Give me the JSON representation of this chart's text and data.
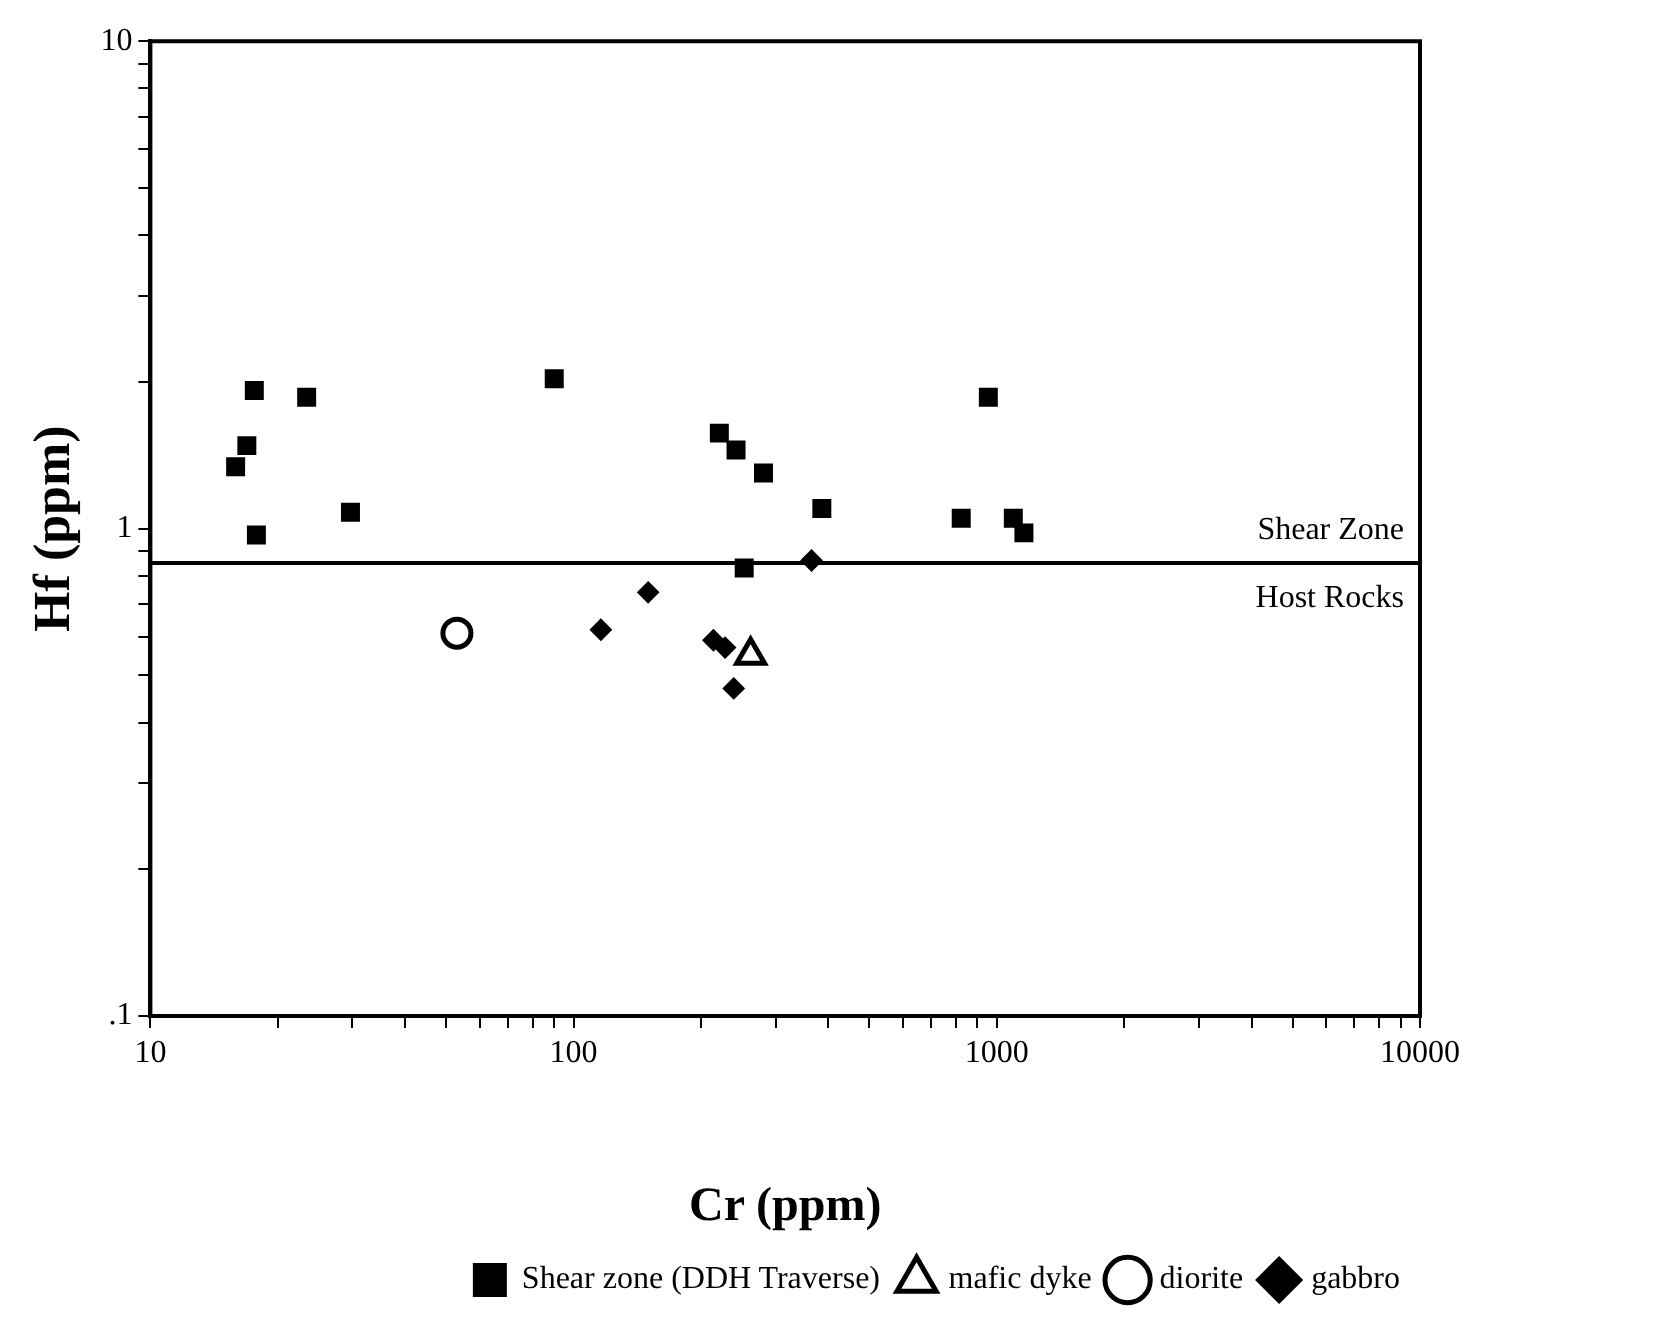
{
  "chart_data": {
    "type": "scatter",
    "xlabel": "Cr (ppm)",
    "ylabel": "Hf (ppm)",
    "log": "xy",
    "xlim": [
      10,
      10000
    ],
    "ylim": [
      0.1,
      10
    ],
    "xticks": [
      10,
      {
        "value": 20,
        "label": null
      },
      {
        "value": 30,
        "label": null
      },
      {
        "value": 40,
        "label": null
      },
      {
        "value": 50,
        "label": null
      },
      {
        "value": 60,
        "label": null
      },
      {
        "value": 70,
        "label": null
      },
      {
        "value": 80,
        "label": null
      },
      {
        "value": 90,
        "label": null
      },
      100,
      {
        "value": 200,
        "label": null
      },
      {
        "value": 300,
        "label": null
      },
      {
        "value": 400,
        "label": null
      },
      {
        "value": 500,
        "label": null
      },
      {
        "value": 600,
        "label": null
      },
      {
        "value": 700,
        "label": null
      },
      {
        "value": 800,
        "label": null
      },
      {
        "value": 900,
        "label": null
      },
      1000,
      {
        "value": 2000,
        "label": null
      },
      {
        "value": 3000,
        "label": null
      },
      {
        "value": 4000,
        "label": null
      },
      {
        "value": 5000,
        "label": null
      },
      {
        "value": 6000,
        "label": null
      },
      {
        "value": 7000,
        "label": null
      },
      {
        "value": 8000,
        "label": null
      },
      {
        "value": 9000,
        "label": null
      },
      10000
    ],
    "yticks": [
      {
        "value": 0.1,
        "label": ".1"
      },
      {
        "value": 0.2,
        "label": null
      },
      {
        "value": 0.3,
        "label": null
      },
      {
        "value": 0.4,
        "label": null
      },
      {
        "value": 0.5,
        "label": null
      },
      {
        "value": 0.6,
        "label": null
      },
      {
        "value": 0.7,
        "label": null
      },
      {
        "value": 0.8,
        "label": null
      },
      {
        "value": 0.9,
        "label": null
      },
      1,
      {
        "value": 2,
        "label": null
      },
      {
        "value": 3,
        "label": null
      },
      {
        "value": 4,
        "label": null
      },
      {
        "value": 5,
        "label": null
      },
      {
        "value": 6,
        "label": null
      },
      {
        "value": 7,
        "label": null
      },
      {
        "value": 8,
        "label": null
      },
      {
        "value": 9,
        "label": null
      },
      10
    ],
    "grid": false,
    "legend": "bottom right",
    "ref_lines": [
      {
        "axis": "y",
        "value": 0.85,
        "color": "#000000"
      }
    ],
    "annotations": [
      "Shear Zone",
      "Host Rocks"
    ],
    "series": [
      {
        "name": "Shear zone (DDH Traverse)",
        "color": "#000000",
        "marker": "square",
        "x": [
          15.9,
          16.9,
          17.6,
          17.8,
          23.4,
          29.7,
          90,
          221,
          242,
          281,
          253,
          386,
          824,
          955,
          1094,
          1159
        ],
        "values": [
          1.34,
          1.48,
          1.92,
          0.97,
          1.86,
          1.08,
          2.03,
          1.57,
          1.45,
          1.3,
          0.83,
          1.1,
          1.05,
          1.86,
          1.05,
          0.98
        ]
      },
      {
        "name": "mafic dyke",
        "color": "#000000",
        "marker": "triangle",
        "x": [
          262
        ],
        "values": [
          0.55
        ]
      },
      {
        "name": "diorite",
        "color": "#000000",
        "marker": "circle",
        "x": [
          53
        ],
        "values": [
          0.61
        ]
      },
      {
        "name": "gabbro",
        "color": "#000000",
        "marker": "diamond",
        "x": [
          116,
          150,
          214,
          239,
          228,
          365
        ],
        "values": [
          0.62,
          0.74,
          0.59,
          0.47,
          0.57,
          0.86
        ]
      }
    ]
  }
}
